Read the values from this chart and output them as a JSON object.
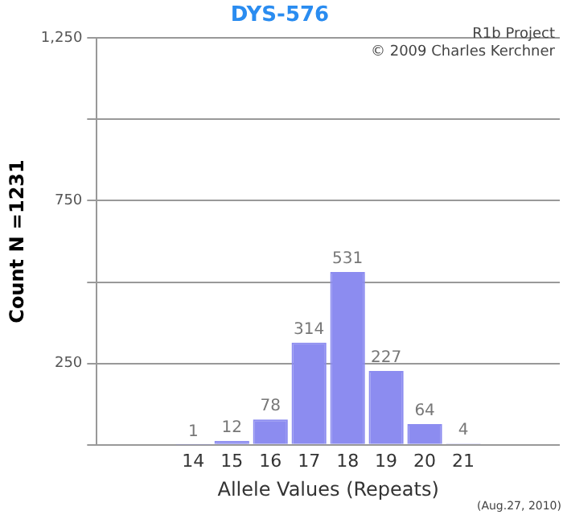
{
  "chart_data": {
    "type": "bar",
    "title": "DYS-576",
    "xlabel": "Allele Values (Repeats)",
    "ylabel": "Count N =1231",
    "categories": [
      null,
      null,
      "14",
      "15",
      "16",
      "17",
      "18",
      "19",
      "20",
      "21",
      null,
      null
    ],
    "values": [
      null,
      null,
      1,
      12,
      78,
      314,
      531,
      227,
      64,
      4,
      null,
      null
    ],
    "color": "#8c8cf0",
    "ylim": [
      0,
      1250
    ],
    "yticks": [
      {
        "value": 0,
        "label": null
      },
      250,
      {
        "value": 500,
        "label": null
      },
      750,
      {
        "value": 1000,
        "label": null
      },
      {
        "value": 1250,
        "label": "1,250"
      }
    ],
    "grid": "y",
    "data_labels": true,
    "legend": false,
    "annotations": [
      "R1b Project",
      "© 2009 Charles Kerchner",
      "(Aug.27, 2010)"
    ]
  }
}
